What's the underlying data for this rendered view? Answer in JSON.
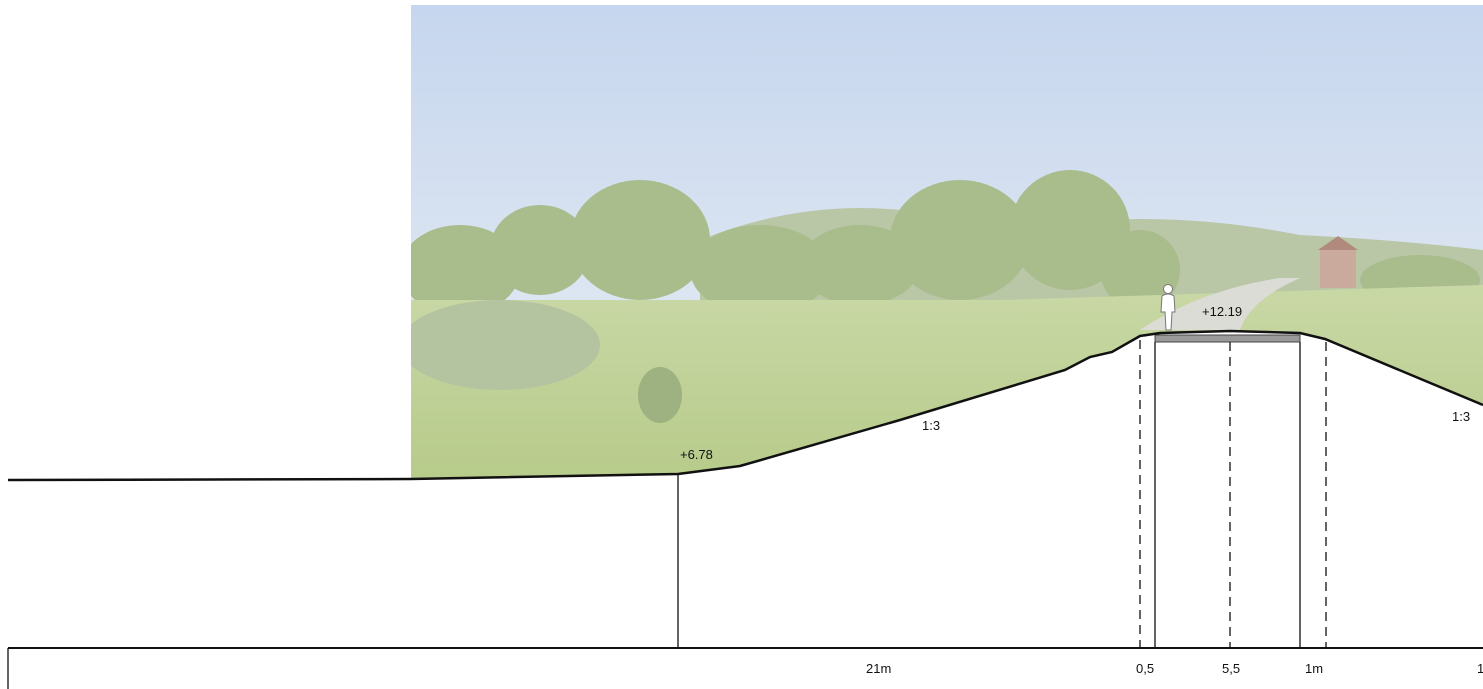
{
  "elevations": [
    "+12.19",
    "+6.78"
  ],
  "slopes": [
    "1:3",
    "1:3"
  ],
  "dimensions": [
    "21m",
    "0,5",
    "5,5",
    "1m",
    "1"
  ]
}
